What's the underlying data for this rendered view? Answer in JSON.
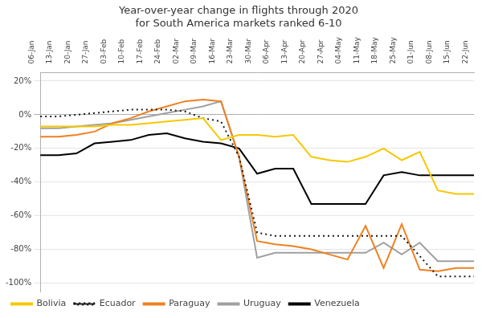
{
  "chart_data": {
    "type": "line",
    "title": "Year-over-year change in flights through 2020\nfor South America markets ranked 6-10",
    "categories": [
      "06-Jan",
      "13-Jan",
      "20-Jan",
      "27-Jan",
      "03-Feb",
      "10-Feb",
      "17-Feb",
      "24-Feb",
      "02-Mar",
      "09-Mar",
      "16-Mar",
      "23-Mar",
      "30-Mar",
      "06-Apr",
      "13-Apr",
      "20-Apr",
      "27-Apr",
      "04-May",
      "11-May",
      "18-May",
      "25-May",
      "01-Jun",
      "08-Jun",
      "15-Jun",
      "22-Jun"
    ],
    "series": [
      {
        "name": "Bolivia",
        "color": "#F5C800",
        "line_style": "solid",
        "values": [
          -7,
          -7,
          -7,
          -7,
          -6,
          -6,
          -5,
          -4,
          -3,
          -2,
          -15,
          -12,
          -12,
          -13,
          -12,
          -25,
          -27,
          -28,
          -25,
          -20,
          -27,
          -22,
          -45,
          -47,
          -47
        ]
      },
      {
        "name": "Ecuador",
        "color": "#1a1a1a",
        "line_style": "dotted",
        "values": [
          -1,
          -1,
          0,
          1,
          2,
          3,
          3,
          3,
          2,
          -2,
          -4,
          -25,
          -70,
          -72,
          -72,
          -72,
          -72,
          -72,
          -72,
          -72,
          -72,
          -84,
          -96,
          -96,
          -96
        ]
      },
      {
        "name": "Paraguay",
        "color": "#F08020",
        "line_style": "solid",
        "values": [
          -13,
          -13,
          -12,
          -10,
          -5,
          -2,
          2,
          5,
          8,
          9,
          8,
          -25,
          -75,
          -77,
          -78,
          -80,
          -83,
          -86,
          -66,
          -91,
          -65,
          -92,
          -93,
          -91,
          -91
        ]
      },
      {
        "name": "Uruguay",
        "color": "#a0a0a0",
        "line_style": "solid",
        "values": [
          -8,
          -8,
          -7,
          -6,
          -5,
          -3,
          -1,
          1,
          3,
          5,
          8,
          -25,
          -85,
          -82,
          -82,
          -82,
          -82,
          -82,
          -82,
          -76,
          -83,
          -76,
          -87,
          -87,
          -87
        ]
      },
      {
        "name": "Venezuela",
        "color": "#000000",
        "line_style": "solid",
        "values": [
          -24,
          -24,
          -23,
          -17,
          -16,
          -15,
          -12,
          -11,
          -14,
          -16,
          -17,
          -20,
          -35,
          -32,
          -32,
          -53,
          -53,
          -53,
          -53,
          -36,
          -34,
          -36,
          -36,
          -36,
          -36
        ]
      }
    ],
    "ylim": [
      -105,
      25
    ],
    "yticks": [
      {
        "value": 20,
        "label": "20%"
      },
      {
        "value": 0,
        "label": "0%"
      },
      {
        "value": -20,
        "label": "-20%"
      },
      {
        "value": -40,
        "label": "-40%"
      },
      {
        "value": -60,
        "label": "-60%"
      },
      {
        "value": -80,
        "label": "-80%"
      },
      {
        "value": -100,
        "label": "-100%"
      }
    ],
    "grid": true,
    "legend": "lower left"
  }
}
